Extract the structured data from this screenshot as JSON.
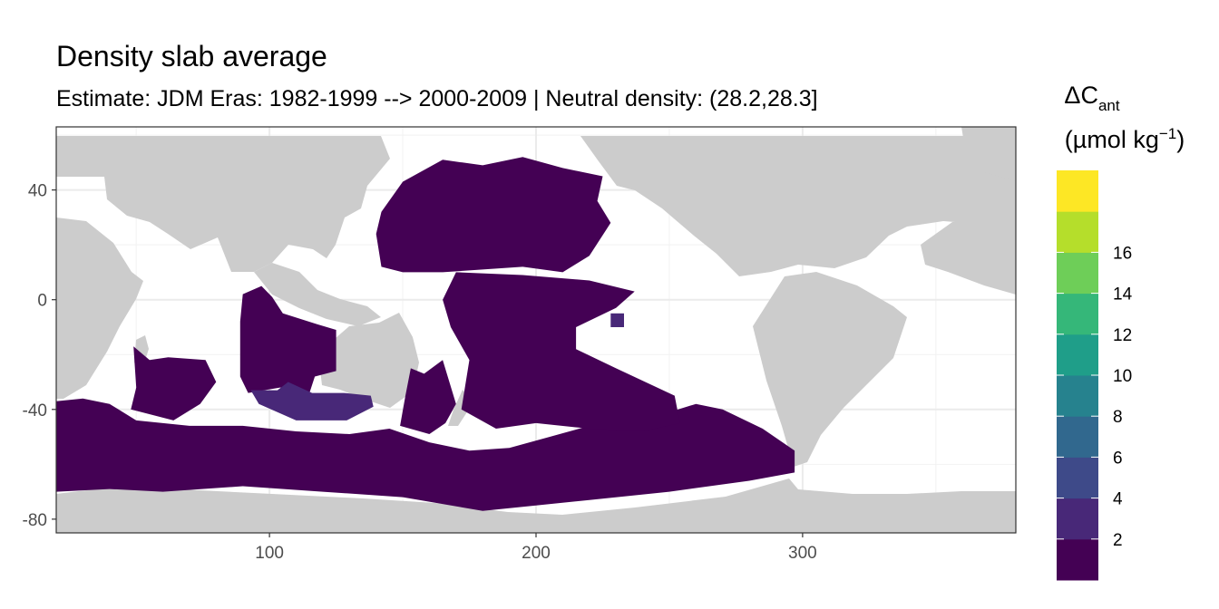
{
  "chart_data": {
    "type": "heatmap",
    "title": "Density slab average",
    "subtitle": "Estimate: JDM Eras: 1982-1999 --> 2000-2009 | Neutral density: (28.2,28.3]",
    "xlim": [
      20,
      380
    ],
    "ylim": [
      -85,
      63
    ],
    "x_ticks": [
      100,
      200,
      300
    ],
    "y_ticks": [
      40,
      0,
      -40,
      -80
    ],
    "x_tick_labels": [
      "100",
      "200",
      "300"
    ],
    "y_tick_labels": [
      "40",
      "0",
      "-40",
      "-80"
    ],
    "grid": true,
    "background_land_color": "#cccccc",
    "legend": {
      "title_main": "ΔC",
      "title_subscript": "ant",
      "title_unit": "(µmol kg",
      "title_unit_superscript": "−1",
      "title_unit_close": ")",
      "placement": "right",
      "bins": [
        {
          "from": 0,
          "to": 2,
          "color": "#440154"
        },
        {
          "from": 2,
          "to": 4,
          "color": "#482878"
        },
        {
          "from": 4,
          "to": 6,
          "color": "#3e4a89"
        },
        {
          "from": 6,
          "to": 8,
          "color": "#31688e"
        },
        {
          "from": 8,
          "to": 10,
          "color": "#26828e"
        },
        {
          "from": 10,
          "to": 12,
          "color": "#1f9e89"
        },
        {
          "from": 12,
          "to": 14,
          "color": "#35b779"
        },
        {
          "from": 14,
          "to": 16,
          "color": "#6ece58"
        },
        {
          "from": 16,
          "to": 18,
          "color": "#b5de2b"
        },
        {
          "from": 18,
          "to": 20,
          "color": "#fde725"
        }
      ],
      "labels": [
        "2",
        "4",
        "6",
        "8",
        "10",
        "12",
        "14",
        "16"
      ]
    },
    "regions": [
      {
        "name": "southern-ocean-band",
        "value_bin": 0,
        "lonlat": [
          [
            20,
            -37
          ],
          [
            30,
            -36
          ],
          [
            40,
            -38
          ],
          [
            50,
            -44
          ],
          [
            70,
            -46
          ],
          [
            90,
            -46
          ],
          [
            110,
            -48
          ],
          [
            130,
            -49
          ],
          [
            145,
            -47
          ],
          [
            160,
            -52
          ],
          [
            175,
            -55
          ],
          [
            190,
            -54
          ],
          [
            205,
            -50
          ],
          [
            220,
            -46
          ],
          [
            240,
            -44
          ],
          [
            260,
            -38
          ],
          [
            270,
            -40
          ],
          [
            285,
            -47
          ],
          [
            297,
            -55
          ],
          [
            297,
            -63
          ],
          [
            280,
            -66
          ],
          [
            250,
            -70
          ],
          [
            220,
            -73
          ],
          [
            200,
            -75
          ],
          [
            180,
            -77
          ],
          [
            150,
            -72
          ],
          [
            120,
            -70
          ],
          [
            90,
            -68
          ],
          [
            60,
            -70
          ],
          [
            40,
            -69
          ],
          [
            20,
            -70
          ]
        ]
      },
      {
        "name": "indian-ocean-east",
        "value_bin": 0,
        "lonlat": [
          [
            90,
            2
          ],
          [
            97,
            5
          ],
          [
            101,
            1
          ],
          [
            105,
            -5
          ],
          [
            118,
            -9
          ],
          [
            125,
            -11
          ],
          [
            125,
            -26
          ],
          [
            117,
            -28
          ],
          [
            115,
            -34
          ],
          [
            104,
            -32
          ],
          [
            92,
            -34
          ],
          [
            89,
            -28
          ],
          [
            89,
            -8
          ]
        ]
      },
      {
        "name": "indian-ocean-west",
        "value_bin": 0,
        "lonlat": [
          [
            49,
            -17
          ],
          [
            55,
            -22
          ],
          [
            62,
            -21
          ],
          [
            76,
            -22
          ],
          [
            80,
            -30
          ],
          [
            74,
            -38
          ],
          [
            64,
            -44
          ],
          [
            48,
            -40
          ],
          [
            50,
            -32
          ]
        ]
      },
      {
        "name": "tasman-sea",
        "value_bin": 0,
        "lonlat": [
          [
            153,
            -25
          ],
          [
            158,
            -27
          ],
          [
            165,
            -22
          ],
          [
            170,
            -38
          ],
          [
            166,
            -45
          ],
          [
            160,
            -49
          ],
          [
            149,
            -46
          ],
          [
            151,
            -35
          ]
        ]
      },
      {
        "name": "north-pacific",
        "value_bin": 0,
        "lonlat": [
          [
            142,
            32
          ],
          [
            150,
            43
          ],
          [
            165,
            51
          ],
          [
            180,
            49
          ],
          [
            195,
            52
          ],
          [
            210,
            48
          ],
          [
            225,
            45
          ],
          [
            223,
            36
          ],
          [
            228,
            28
          ],
          [
            220,
            16
          ],
          [
            210,
            10
          ],
          [
            195,
            12
          ],
          [
            180,
            11
          ],
          [
            165,
            10
          ],
          [
            150,
            10
          ],
          [
            142,
            12
          ],
          [
            140,
            24
          ]
        ]
      },
      {
        "name": "central-south-pacific",
        "value_bin": 0,
        "lonlat": [
          [
            170,
            10
          ],
          [
            195,
            9
          ],
          [
            220,
            7
          ],
          [
            237,
            3
          ],
          [
            230,
            -3
          ],
          [
            215,
            -10
          ],
          [
            215,
            -18
          ],
          [
            230,
            -25
          ],
          [
            252,
            -35
          ],
          [
            254,
            -45
          ],
          [
            240,
            -48
          ],
          [
            220,
            -47
          ],
          [
            200,
            -45
          ],
          [
            185,
            -47
          ],
          [
            172,
            -40
          ],
          [
            175,
            -22
          ],
          [
            168,
            -10
          ],
          [
            165,
            0
          ]
        ]
      },
      {
        "name": "south-australia-basin",
        "value_bin": 1,
        "lonlat": [
          [
            93,
            -33
          ],
          [
            103,
            -33
          ],
          [
            107,
            -30
          ],
          [
            116,
            -34
          ],
          [
            128,
            -34
          ],
          [
            138,
            -35
          ],
          [
            139,
            -39
          ],
          [
            129,
            -44
          ],
          [
            110,
            -44
          ],
          [
            96,
            -38
          ]
        ]
      },
      {
        "name": "central-pacific-patch",
        "value_bin": 1,
        "lonlat": [
          [
            228,
            -5
          ],
          [
            233,
            -5
          ],
          [
            233,
            -10
          ],
          [
            228,
            -10
          ]
        ]
      }
    ]
  }
}
